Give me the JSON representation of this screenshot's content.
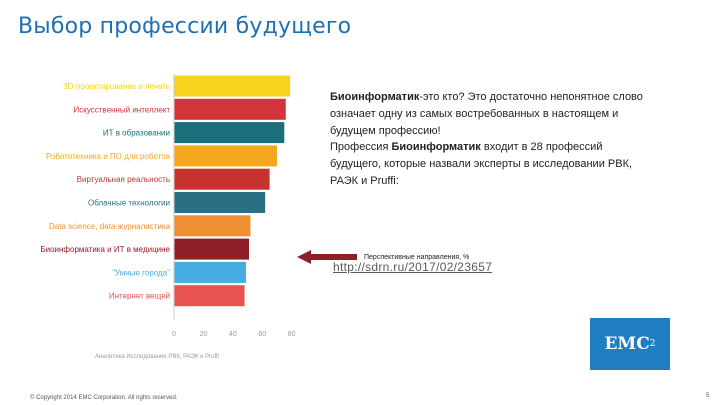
{
  "header": {
    "title": "Выбор профессии будущего"
  },
  "chart_data": {
    "type": "bar",
    "orientation": "horizontal",
    "categories": [
      "3D-проектирование и печать",
      "Искусственный интеллект",
      "ИТ в образовании",
      "Робототехника и ПО для роботов",
      "Виртуальная реальность",
      "Облачные технологии",
      "Data science, data-журналистика",
      "Биоинформатика и ИТ в медицине",
      "\"Умные города\"",
      "Интернет вещей"
    ],
    "values": [
      79,
      76,
      75,
      70,
      65,
      62,
      52,
      51,
      49,
      48
    ],
    "colors": [
      "#f7d21e",
      "#d2343a",
      "#1a6f7d",
      "#f5a81e",
      "#c7342f",
      "#2b6f84",
      "#f08f32",
      "#8f1f26",
      "#46aee0",
      "#e75350"
    ],
    "xticks": [
      "0",
      "20",
      "40",
      "60",
      "80"
    ],
    "xlim": [
      0,
      85
    ],
    "source": "Аналитика Исследование РВК, РАЭК и Pruffi"
  },
  "description": {
    "line1_bold": "Биоинформатик",
    "line1_rest": "-это кто? Это достаточно непонятное слово",
    "line2": "означает одну из самых востребованных в настоящем и",
    "line3": "будущем профессию!",
    "line4_pre": "Профессия ",
    "line4_bold": "Биоинформатик",
    "line4_rest": " входит в 28 профессий",
    "line5": "будущего, которые назвали эксперты в исследовании РВК,",
    "line6": "РАЭК и Pruffi:"
  },
  "annotation": "Перспективные направления, %",
  "link": "http://sdrn.ru/2017/02/23657",
  "logo": {
    "text": "EMC",
    "sup": "2"
  },
  "footer": "© Copyright 2014 EMC Corporation. All rights reserved.",
  "page_number": "5"
}
